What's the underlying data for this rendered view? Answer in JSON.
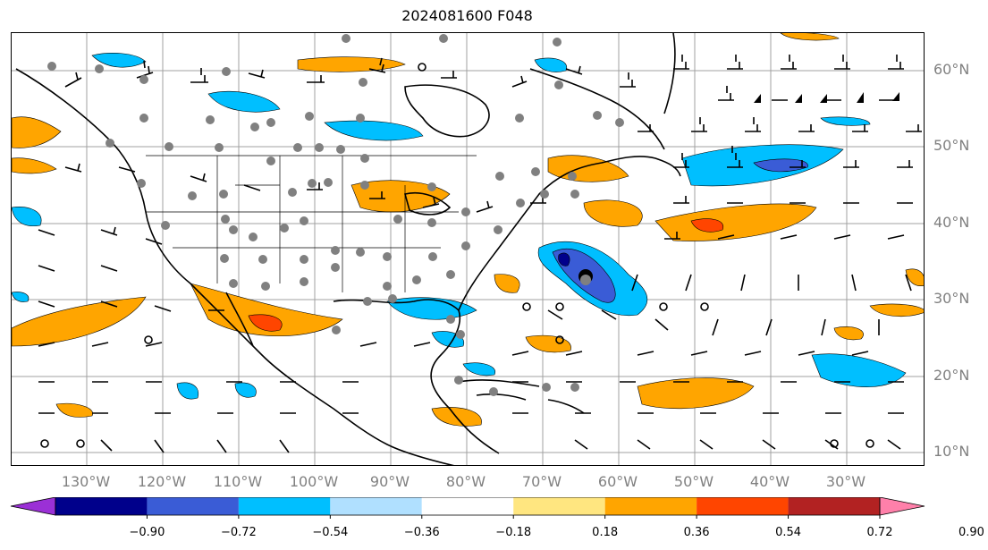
{
  "title": "2024081600 F048",
  "lat_labels": [
    "60°N",
    "50°N",
    "40°N",
    "30°N",
    "20°N",
    "10°N"
  ],
  "lon_labels": [
    "130°W",
    "120°W",
    "110°W",
    "100°W",
    "90°W",
    "80°W",
    "70°W",
    "60°W",
    "50°W",
    "40°W",
    "30°W"
  ],
  "colorbar": {
    "labels": [
      "−0.90",
      "−0.72",
      "−0.54",
      "−0.36",
      "−0.18",
      "0.18",
      "0.36",
      "0.54",
      "0.72",
      "0.90"
    ],
    "colors": [
      "#9b30d6",
      "#00008b",
      "#3a5cd6",
      "#00bfff",
      "#b0e0ff",
      "#ffffff",
      "#ffe680",
      "#ffa500",
      "#ff4500",
      "#b22222",
      "#ff80aa"
    ]
  },
  "colors": {
    "grid": "#a0a0a0",
    "land_outline": "#000000",
    "axis_text": "#808080"
  }
}
